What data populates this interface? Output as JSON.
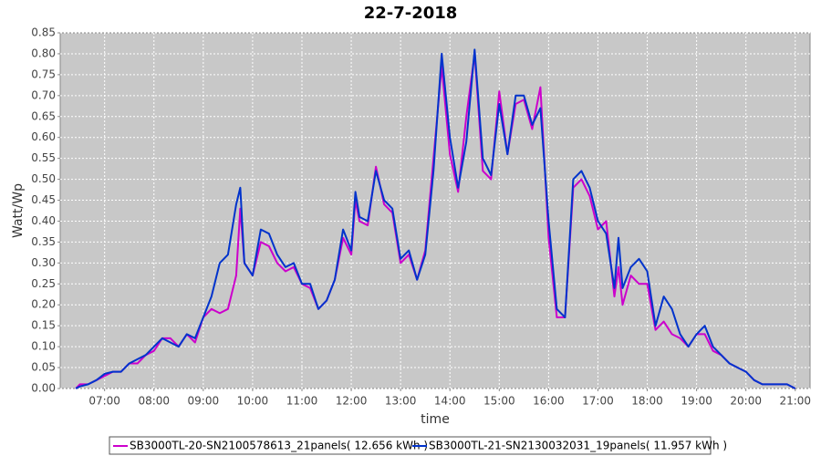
{
  "chart_data": {
    "type": "line",
    "title": "22-7-2018",
    "x_label": "time",
    "y_label": "Watt/Wp",
    "x": [
      "06:25",
      "06:30",
      "06:40",
      "06:50",
      "07:00",
      "07:10",
      "07:20",
      "07:30",
      "07:40",
      "07:50",
      "08:00",
      "08:10",
      "08:20",
      "08:30",
      "08:40",
      "08:50",
      "09:00",
      "09:10",
      "09:20",
      "09:30",
      "09:40",
      "09:45",
      "09:50",
      "10:00",
      "10:10",
      "10:20",
      "10:30",
      "10:40",
      "10:50",
      "11:00",
      "11:10",
      "11:20",
      "11:30",
      "11:40",
      "11:50",
      "12:00",
      "12:05",
      "12:10",
      "12:20",
      "12:30",
      "12:40",
      "12:50",
      "13:00",
      "13:10",
      "13:20",
      "13:30",
      "13:40",
      "13:50",
      "14:00",
      "14:10",
      "14:20",
      "14:30",
      "14:40",
      "14:50",
      "15:00",
      "15:10",
      "15:20",
      "15:30",
      "15:40",
      "15:50",
      "16:00",
      "16:10",
      "16:20",
      "16:30",
      "16:40",
      "16:50",
      "17:00",
      "17:10",
      "17:20",
      "17:25",
      "17:30",
      "17:40",
      "17:50",
      "18:00",
      "18:10",
      "18:20",
      "18:30",
      "18:40",
      "18:50",
      "19:00",
      "19:10",
      "19:20",
      "19:30",
      "19:40",
      "19:50",
      "20:00",
      "20:10",
      "20:20",
      "20:30",
      "20:40",
      "20:50",
      "21:00"
    ],
    "series": [
      {
        "name": "SB3000TL-20-SN2100578613_21panels( 12.656 kWh )",
        "color": "#cc00cc",
        "values": [
          0.0,
          0.01,
          0.01,
          0.02,
          0.03,
          0.04,
          0.04,
          0.06,
          0.06,
          0.08,
          0.09,
          0.12,
          0.12,
          0.1,
          0.13,
          0.11,
          0.17,
          0.19,
          0.18,
          0.19,
          0.27,
          0.43,
          0.3,
          0.27,
          0.35,
          0.34,
          0.3,
          0.28,
          0.29,
          0.25,
          0.24,
          0.19,
          0.21,
          0.26,
          0.36,
          0.32,
          0.45,
          0.4,
          0.39,
          0.53,
          0.44,
          0.42,
          0.3,
          0.32,
          0.26,
          0.33,
          0.55,
          0.77,
          0.56,
          0.47,
          0.65,
          0.8,
          0.52,
          0.5,
          0.71,
          0.56,
          0.68,
          0.69,
          0.62,
          0.72,
          0.36,
          0.17,
          0.17,
          0.48,
          0.5,
          0.46,
          0.38,
          0.4,
          0.22,
          0.29,
          0.2,
          0.27,
          0.25,
          0.25,
          0.14,
          0.16,
          0.13,
          0.12,
          0.1,
          0.13,
          0.13,
          0.09,
          0.08,
          0.06,
          0.05,
          0.04,
          0.02,
          0.01,
          0.01,
          0.01,
          0.01,
          0.0
        ]
      },
      {
        "name": "SB3000TL-21-SN2130032031_19panels( 11.957 kWh )",
        "color": "#0033cc",
        "values": [
          0.0,
          0.005,
          0.01,
          0.02,
          0.035,
          0.04,
          0.04,
          0.06,
          0.07,
          0.08,
          0.1,
          0.12,
          0.11,
          0.1,
          0.13,
          0.12,
          0.17,
          0.22,
          0.3,
          0.32,
          0.44,
          0.48,
          0.3,
          0.27,
          0.38,
          0.37,
          0.32,
          0.29,
          0.3,
          0.25,
          0.25,
          0.19,
          0.21,
          0.26,
          0.38,
          0.33,
          0.47,
          0.41,
          0.4,
          0.52,
          0.45,
          0.43,
          0.31,
          0.33,
          0.26,
          0.32,
          0.52,
          0.8,
          0.6,
          0.48,
          0.59,
          0.81,
          0.55,
          0.51,
          0.68,
          0.56,
          0.7,
          0.7,
          0.63,
          0.67,
          0.4,
          0.19,
          0.17,
          0.5,
          0.52,
          0.48,
          0.4,
          0.37,
          0.24,
          0.36,
          0.24,
          0.29,
          0.31,
          0.28,
          0.15,
          0.22,
          0.19,
          0.13,
          0.1,
          0.13,
          0.15,
          0.1,
          0.08,
          0.06,
          0.05,
          0.04,
          0.02,
          0.01,
          0.01,
          0.01,
          0.01,
          0.0
        ]
      }
    ],
    "xlim": [
      "06:06",
      "21:18"
    ],
    "xticks": [
      "07:00",
      "08:00",
      "09:00",
      "10:00",
      "11:00",
      "12:00",
      "13:00",
      "14:00",
      "15:00",
      "16:00",
      "17:00",
      "18:00",
      "19:00",
      "20:00",
      "21:00"
    ],
    "ylim": [
      0,
      0.85
    ],
    "yticks": [
      {
        "value": 0,
        "label": "0.00"
      },
      {
        "value": 0.05,
        "label": "0.05"
      },
      {
        "value": 0.1,
        "label": "0.10"
      },
      {
        "value": 0.15,
        "label": "0.15"
      },
      {
        "value": 0.2,
        "label": "0.20"
      },
      {
        "value": 0.25,
        "label": "0.25"
      },
      {
        "value": 0.3,
        "label": "0.30"
      },
      {
        "value": 0.35,
        "label": "0.35"
      },
      {
        "value": 0.4,
        "label": "0.40"
      },
      {
        "value": 0.45,
        "label": "0.45"
      },
      {
        "value": 0.5,
        "label": "0.50"
      },
      {
        "value": 0.55,
        "label": "0.55"
      },
      {
        "value": 0.6,
        "label": "0.60"
      },
      {
        "value": 0.65,
        "label": "0.65"
      },
      {
        "value": 0.7,
        "label": "0.70"
      },
      {
        "value": 0.75,
        "label": "0.75"
      },
      {
        "value": 0.8,
        "label": "0.80"
      },
      {
        "value": 0.85,
        "label": "0.85"
      }
    ],
    "grid": true,
    "legend": "bottom"
  }
}
